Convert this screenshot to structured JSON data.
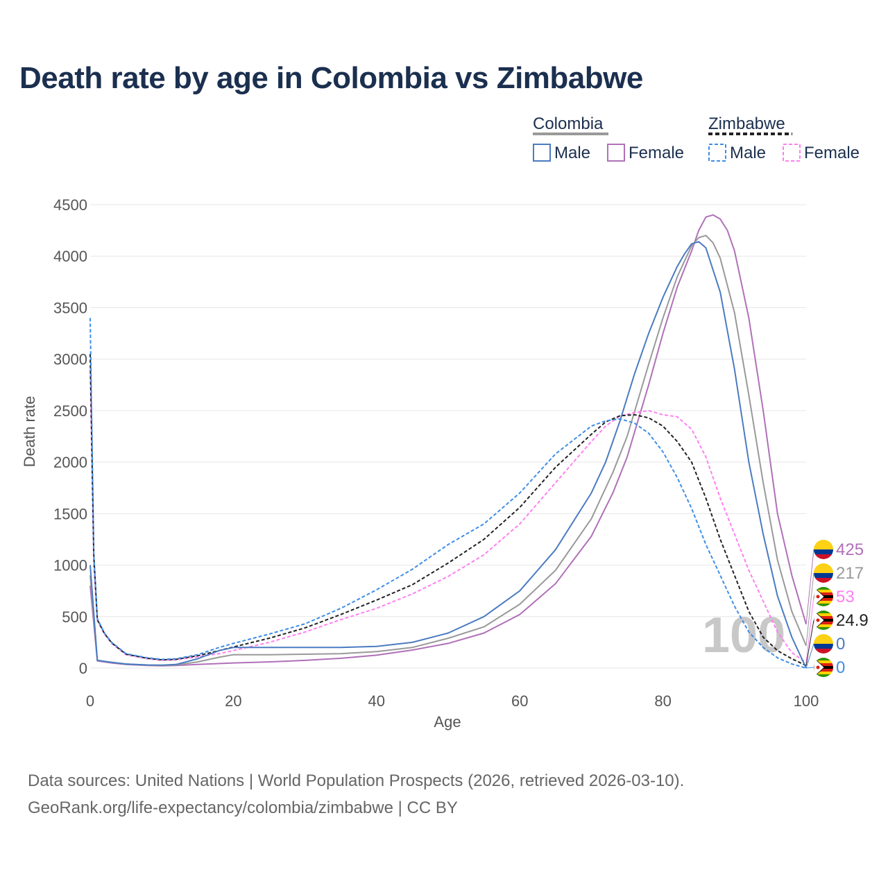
{
  "title": "Death rate by age in Colombia vs Zimbabwe",
  "source_line1": "Data sources: United Nations | World Population Prospects (2026, retrieved 2026-03-10).",
  "source_line2": "GeoRank.org/life-expectancy/colombia/zimbabwe | CC BY",
  "legend": {
    "colombia": "Colombia",
    "zimbabwe": "Zimbabwe",
    "colombia_male": "Male",
    "colombia_female": "Female",
    "zimbabwe_male": "Male",
    "zimbabwe_female": "Female"
  },
  "watermark": "100",
  "colors": {
    "title": "#1b2f4f",
    "grid": "#e6e6e6",
    "colombia_total": "#999999",
    "colombia_male": "#4a7bc0",
    "colombia_female": "#b070b8",
    "zimbabwe_total": "#222222",
    "zimbabwe_male": "#3d8de8",
    "zimbabwe_female": "#ff7ff0"
  },
  "chart_data": {
    "type": "line",
    "title": "Death rate by age in Colombia vs Zimbabwe",
    "xlabel": "Age",
    "ylabel": "Death rate",
    "xlim": [
      0,
      100
    ],
    "ylim": [
      0,
      4500
    ],
    "xticks": [
      "0",
      "20",
      "40",
      "60",
      "80",
      "100"
    ],
    "yticks": [
      "0",
      "500",
      "1000",
      "1500",
      "2000",
      "2500",
      "3000",
      "3500",
      "4000",
      "4500"
    ],
    "series": [
      {
        "id": "colombia_female",
        "name": "Colombia Female",
        "country": "Colombia",
        "dash": false,
        "end_label": "425",
        "end_value": 425,
        "x": [
          0,
          1,
          2,
          3,
          5,
          8,
          10,
          12,
          15,
          20,
          25,
          30,
          35,
          40,
          45,
          50,
          55,
          60,
          65,
          70,
          73,
          75,
          78,
          80,
          82,
          84,
          85,
          86,
          87,
          88,
          89,
          90,
          92,
          94,
          96,
          98,
          100
        ],
        "y": [
          800,
          70,
          60,
          50,
          35,
          25,
          22,
          25,
          35,
          50,
          60,
          75,
          95,
          125,
          175,
          240,
          340,
          520,
          820,
          1280,
          1700,
          2050,
          2750,
          3250,
          3700,
          4050,
          4250,
          4380,
          4400,
          4360,
          4250,
          4050,
          3400,
          2500,
          1500,
          900,
          425
        ]
      },
      {
        "id": "colombia_total",
        "name": "Colombia",
        "country": "Colombia",
        "dash": false,
        "end_label": "217",
        "end_value": 217,
        "x": [
          0,
          1,
          3,
          5,
          8,
          10,
          12,
          15,
          18,
          20,
          25,
          30,
          35,
          40,
          45,
          50,
          55,
          60,
          65,
          70,
          73,
          75,
          78,
          80,
          82,
          84,
          85,
          86,
          87,
          88,
          90,
          92,
          94,
          96,
          98,
          100
        ],
        "y": [
          900,
          75,
          55,
          40,
          28,
          25,
          30,
          60,
          105,
          130,
          130,
          135,
          140,
          160,
          200,
          290,
          400,
          620,
          950,
          1450,
          1900,
          2250,
          2950,
          3400,
          3800,
          4100,
          4180,
          4200,
          4130,
          3980,
          3450,
          2650,
          1800,
          1050,
          550,
          217
        ]
      },
      {
        "id": "zimbabwe_female",
        "name": "Zimbabwe Female",
        "country": "Zimbabwe",
        "dash": true,
        "end_label": "53",
        "end_value": 53,
        "x": [
          0,
          0.5,
          1,
          2,
          3,
          5,
          8,
          10,
          12,
          15,
          18,
          20,
          25,
          30,
          35,
          40,
          45,
          50,
          55,
          60,
          65,
          70,
          72,
          74,
          76,
          78,
          80,
          82,
          84,
          86,
          88,
          90,
          92,
          94,
          96,
          98,
          100
        ],
        "y": [
          2900,
          1000,
          460,
          330,
          240,
          130,
          90,
          75,
          80,
          110,
          140,
          170,
          250,
          350,
          470,
          580,
          720,
          890,
          1100,
          1400,
          1800,
          2200,
          2350,
          2450,
          2480,
          2500,
          2460,
          2440,
          2320,
          2050,
          1650,
          1300,
          950,
          650,
          350,
          150,
          53
        ]
      },
      {
        "id": "zimbabwe_total",
        "name": "Zimbabwe",
        "country": "Zimbabwe",
        "dash": true,
        "end_label": "24.9",
        "end_value": 24.9,
        "x": [
          0,
          0.5,
          1,
          2,
          3,
          5,
          8,
          10,
          12,
          15,
          18,
          20,
          25,
          30,
          35,
          40,
          45,
          50,
          55,
          60,
          65,
          70,
          72,
          74,
          76,
          78,
          80,
          82,
          84,
          86,
          88,
          90,
          92,
          94,
          96,
          98,
          100
        ],
        "y": [
          3050,
          1100,
          470,
          335,
          245,
          135,
          95,
          80,
          85,
          120,
          170,
          205,
          290,
          390,
          520,
          660,
          810,
          1020,
          1250,
          1560,
          1950,
          2270,
          2390,
          2450,
          2460,
          2430,
          2350,
          2200,
          2000,
          1650,
          1250,
          900,
          550,
          300,
          170,
          90,
          24.9
        ]
      },
      {
        "id": "colombia_male",
        "name": "Colombia Male",
        "country": "Colombia",
        "dash": false,
        "end_label": "0",
        "end_value": 0,
        "x": [
          0,
          1,
          3,
          5,
          8,
          10,
          12,
          15,
          18,
          20,
          25,
          30,
          35,
          40,
          45,
          50,
          55,
          60,
          65,
          70,
          72,
          74,
          76,
          78,
          80,
          82,
          83,
          84,
          85,
          86,
          88,
          90,
          92,
          94,
          96,
          98,
          100
        ],
        "y": [
          1000,
          75,
          55,
          40,
          30,
          28,
          35,
          90,
          170,
          200,
          200,
          200,
          200,
          210,
          250,
          340,
          500,
          750,
          1150,
          1700,
          2000,
          2400,
          2850,
          3250,
          3600,
          3900,
          4020,
          4120,
          4140,
          4080,
          3650,
          2900,
          2000,
          1300,
          700,
          300,
          0
        ]
      },
      {
        "id": "zimbabwe_male",
        "name": "Zimbabwe Male",
        "country": "Zimbabwe",
        "dash": true,
        "end_label": "0",
        "end_value": 0,
        "x": [
          0,
          0.5,
          1,
          2,
          3,
          5,
          8,
          10,
          12,
          15,
          18,
          20,
          25,
          30,
          35,
          40,
          45,
          50,
          55,
          60,
          65,
          70,
          72,
          74,
          76,
          78,
          80,
          82,
          84,
          86,
          88,
          90,
          92,
          94,
          96,
          98,
          100
        ],
        "y": [
          3400,
          1100,
          480,
          340,
          250,
          140,
          100,
          85,
          90,
          130,
          200,
          240,
          330,
          430,
          580,
          760,
          960,
          1200,
          1400,
          1700,
          2080,
          2350,
          2400,
          2420,
          2380,
          2280,
          2100,
          1850,
          1550,
          1200,
          900,
          600,
          350,
          200,
          100,
          40,
          0
        ]
      }
    ]
  }
}
